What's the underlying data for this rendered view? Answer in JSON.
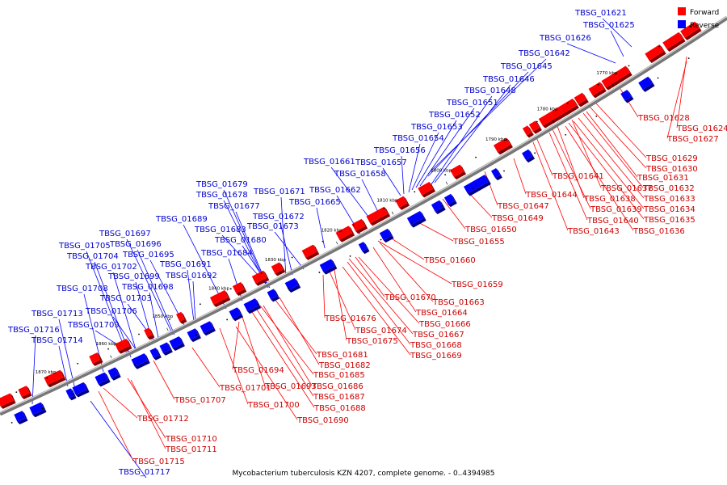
{
  "caption": "Mycobacterium tuberculosis KZN 4207, complete genome. - 0..4394985",
  "legend": {
    "forward": "Forward",
    "reverse": "Reverse"
  },
  "colors": {
    "forward": "#ff0000",
    "reverse": "#0000ff",
    "backbone": "#777777",
    "forward_label": "#cc0000",
    "reverse_label": "#0000cc"
  },
  "ticks": [
    "1770 kbp",
    "1780 kbp",
    "1790 kbp",
    "1800 kbp",
    "1810 kbp",
    "1820 kbp",
    "1830 kbp",
    "1840 kbp",
    "1850 kbp",
    "1860 kbp",
    "1870 kbp"
  ],
  "reverse_labels": [
    "TBSG_01621",
    "TBSG_01625",
    "TBSG_01626",
    "TBSG_01642",
    "TBSG_01645",
    "TBSG_01646",
    "TBSG_01648",
    "TBSG_01651",
    "TBSG_01652",
    "TBSG_01653",
    "TBSG_01654",
    "TBSG_01656",
    "TBSG_01657",
    "TBSG_01661",
    "TBSG_01658",
    "TBSG_01662",
    "TBSG_01665",
    "TBSG_01671",
    "TBSG_01679",
    "TBSG_01678",
    "TBSG_01677",
    "TBSG_01672",
    "TBSG_01673",
    "TBSG_01689",
    "TBSG_01683",
    "TBSG_01680",
    "TBSG_01684",
    "TBSG_01697",
    "TBSG_01696",
    "TBSG_01705",
    "TBSG_01704",
    "TBSG_01695",
    "TBSG_01702",
    "TBSG_01691",
    "TBSG_01692",
    "TBSG_01699",
    "TBSG_01698",
    "TBSG_01708",
    "TBSG_01703",
    "TBSG_01706",
    "TBSG_01713",
    "TBSG_01709",
    "TBSG_01716",
    "TBSG_01714",
    "TBSG_01717"
  ],
  "forward_labels": [
    "TBSG_01628",
    "TBSG_01624",
    "TBSG_01627",
    "TBSG_01629",
    "TBSG_01630",
    "TBSG_01641",
    "TBSG_01631",
    "TBSG_01637",
    "TBSG_01632",
    "TBSG_01644",
    "TBSG_01638",
    "TBSG_01633",
    "TBSG_01647",
    "TBSG_01639",
    "TBSG_01634",
    "TBSG_01649",
    "TBSG_01640",
    "TBSG_01635",
    "TBSG_01650",
    "TBSG_01643",
    "TBSG_01636",
    "TBSG_01655",
    "TBSG_01660",
    "TBSG_01659",
    "TBSG_01670",
    "TBSG_01663",
    "TBSG_01664",
    "TBSG_01676",
    "TBSG_01666",
    "TBSG_01674",
    "TBSG_01667",
    "TBSG_01675",
    "TBSG_01668",
    "TBSG_01669",
    "TBSG_01681",
    "TBSG_01682",
    "TBSG_01694",
    "TBSG_01685",
    "TBSG_01701",
    "TBSG_01693",
    "TBSG_01686",
    "TBSG_01707",
    "TBSG_01700",
    "TBSG_01687",
    "TBSG_01688",
    "TBSG_01712",
    "TBSG_01690",
    "TBSG_01710",
    "TBSG_01711",
    "TBSG_01715"
  ]
}
